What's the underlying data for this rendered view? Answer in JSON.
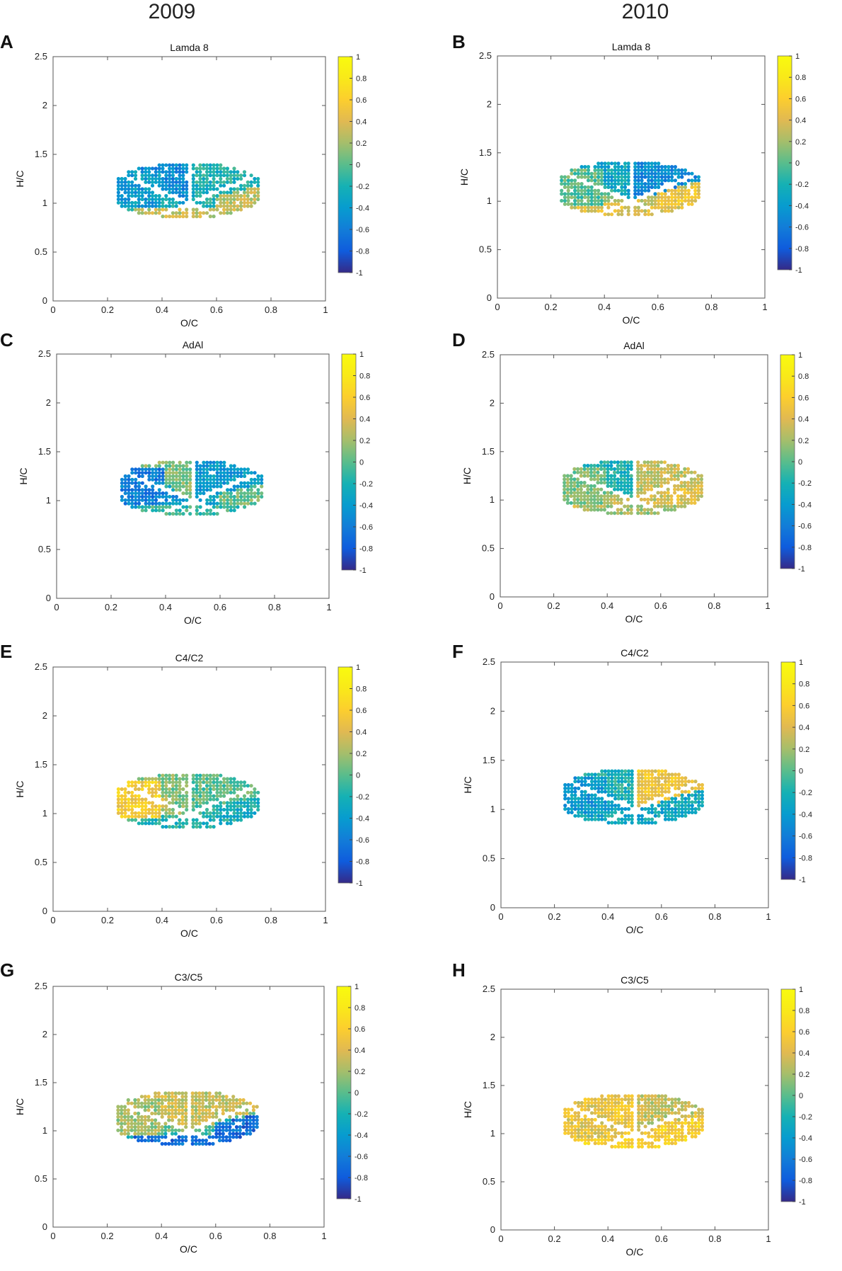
{
  "column_headers": [
    "2009",
    "2010"
  ],
  "chart_data": [
    {
      "panel": "A",
      "type": "scatter",
      "title": "Lamda 8",
      "year": "2009",
      "xlabel": "O/C",
      "ylabel": "H/C",
      "xlim": [
        0,
        1
      ],
      "ylim": [
        0,
        2.5
      ],
      "xticks": [
        "0",
        "0.2",
        "0.4",
        "0.6",
        "0.8",
        "1"
      ],
      "yticks": [
        "0",
        "0.5",
        "1",
        "1.5",
        "2",
        "2.5"
      ],
      "colorbar_ticks": [
        "-1",
        "-0.8",
        "-0.6",
        "-0.4",
        "-0.2",
        "0",
        "0.2",
        "0.4",
        "0.6",
        "0.8",
        "1"
      ],
      "color_range": [
        -1,
        1
      ],
      "color_field": {
        "base": -0.2,
        "tl": -0.5,
        "tr": -0.2,
        "r": 0.3,
        "l": -0.4,
        "b": 0.3
      }
    },
    {
      "panel": "B",
      "type": "scatter",
      "title": "Lamda 8",
      "year": "2010",
      "xlabel": "O/C",
      "ylabel": "H/C",
      "xlim": [
        0,
        1
      ],
      "ylim": [
        0,
        2.5
      ],
      "xticks": [
        "0",
        "0.2",
        "0.4",
        "0.6",
        "0.8",
        "1"
      ],
      "yticks": [
        "0",
        "0.5",
        "1",
        "1.5",
        "2",
        "2.5"
      ],
      "colorbar_ticks": [
        "-1",
        "-0.8",
        "-0.6",
        "-0.4",
        "-0.2",
        "0",
        "0.2",
        "0.4",
        "0.6",
        "0.8",
        "1"
      ],
      "color_range": [
        -1,
        1
      ],
      "color_field": {
        "base": 0.35,
        "tl": -0.3,
        "tr": -0.5,
        "r": 0.5,
        "l": 0.0,
        "b": 0.4
      }
    },
    {
      "panel": "C",
      "type": "scatter",
      "title": "AdAl",
      "year": "2009",
      "xlabel": "O/C",
      "ylabel": "H/C",
      "xlim": [
        0,
        1
      ],
      "ylim": [
        0,
        2.5
      ],
      "xticks": [
        "0",
        "0.2",
        "0.4",
        "0.6",
        "0.8",
        "1"
      ],
      "yticks": [
        "0",
        "0.5",
        "1",
        "1.5",
        "2",
        "2.5"
      ],
      "colorbar_ticks": [
        "-1",
        "-0.8",
        "-0.6",
        "-0.4",
        "-0.2",
        "0",
        "0.2",
        "0.4",
        "0.6",
        "0.8",
        "1"
      ],
      "color_range": [
        -1,
        1
      ],
      "color_field": {
        "base": -0.35,
        "tl": 0.1,
        "tr": -0.4,
        "r": 0.05,
        "l": -0.6,
        "b": -0.1
      }
    },
    {
      "panel": "D",
      "type": "scatter",
      "title": "AdAl",
      "year": "2010",
      "xlabel": "O/C",
      "ylabel": "H/C",
      "xlim": [
        0,
        1
      ],
      "ylim": [
        0,
        2.5
      ],
      "xticks": [
        "0",
        "0.2",
        "0.4",
        "0.6",
        "0.8",
        "1"
      ],
      "yticks": [
        "0",
        "0.5",
        "1",
        "1.5",
        "2",
        "2.5"
      ],
      "colorbar_ticks": [
        "-1",
        "-0.8",
        "-0.6",
        "-0.4",
        "-0.2",
        "0",
        "0.2",
        "0.4",
        "0.6",
        "0.8",
        "1"
      ],
      "color_range": [
        -1,
        1
      ],
      "color_field": {
        "base": 0.35,
        "tl": -0.2,
        "tr": 0.3,
        "r": 0.4,
        "l": 0.1,
        "b": 0.2
      }
    },
    {
      "panel": "E",
      "type": "scatter",
      "title": "C4/C2",
      "year": "2009",
      "xlabel": "O/C",
      "ylabel": "H/C",
      "xlim": [
        0,
        1
      ],
      "ylim": [
        0,
        2.5
      ],
      "xticks": [
        "0",
        "0.2",
        "0.4",
        "0.6",
        "0.8",
        "1"
      ],
      "yticks": [
        "0",
        "0.5",
        "1",
        "1.5",
        "2",
        "2.5"
      ],
      "colorbar_ticks": [
        "-1",
        "-0.8",
        "-0.6",
        "-0.4",
        "-0.2",
        "0",
        "0.2",
        "0.4",
        "0.6",
        "0.8",
        "1"
      ],
      "color_range": [
        -1,
        1
      ],
      "color_field": {
        "base": -0.1,
        "tl": 0.1,
        "tr": 0.0,
        "r": -0.25,
        "l": 0.55,
        "b": -0.2
      }
    },
    {
      "panel": "F",
      "type": "scatter",
      "title": "C4/C2",
      "year": "2010",
      "xlabel": "O/C",
      "ylabel": "H/C",
      "xlim": [
        0,
        1
      ],
      "ylim": [
        0,
        2.5
      ],
      "xticks": [
        "0",
        "0.2",
        "0.4",
        "0.6",
        "0.8",
        "1"
      ],
      "yticks": [
        "0",
        "0.5",
        "1",
        "1.5",
        "2",
        "2.5"
      ],
      "colorbar_ticks": [
        "-1",
        "-0.8",
        "-0.6",
        "-0.4",
        "-0.2",
        "0",
        "0.2",
        "0.4",
        "0.6",
        "0.8",
        "1"
      ],
      "color_range": [
        -1,
        1
      ],
      "color_field": {
        "base": -0.3,
        "tl": -0.2,
        "tr": 0.5,
        "r": -0.3,
        "l": -0.4,
        "b": -0.3
      }
    },
    {
      "panel": "G",
      "type": "scatter",
      "title": "C3/C5",
      "year": "2009",
      "xlabel": "O/C",
      "ylabel": "H/C",
      "xlim": [
        0,
        1
      ],
      "ylim": [
        0,
        2.5
      ],
      "xticks": [
        "0",
        "0.2",
        "0.4",
        "0.6",
        "0.8",
        "1"
      ],
      "yticks": [
        "0",
        "0.5",
        "1",
        "1.5",
        "2",
        "2.5"
      ],
      "colorbar_ticks": [
        "-1",
        "-0.8",
        "-0.6",
        "-0.4",
        "-0.2",
        "0",
        "0.2",
        "0.4",
        "0.6",
        "0.8",
        "1"
      ],
      "color_range": [
        -1,
        1
      ],
      "color_field": {
        "base": -0.1,
        "tl": 0.35,
        "tr": 0.3,
        "r": -0.7,
        "l": 0.2,
        "b": -0.7
      }
    },
    {
      "panel": "H",
      "type": "scatter",
      "title": "C3/C5",
      "year": "2010",
      "xlabel": "O/C",
      "ylabel": "H/C",
      "xlim": [
        0,
        1
      ],
      "ylim": [
        0,
        2.5
      ],
      "xticks": [
        "0",
        "0.2",
        "0.4",
        "0.6",
        "0.8",
        "1"
      ],
      "yticks": [
        "0",
        "0.5",
        "1",
        "1.5",
        "2",
        "2.5"
      ],
      "colorbar_ticks": [
        "-1",
        "-0.8",
        "-0.6",
        "-0.4",
        "-0.2",
        "0",
        "0.2",
        "0.4",
        "0.6",
        "0.8",
        "1"
      ],
      "color_range": [
        -1,
        1
      ],
      "color_field": {
        "base": 0.55,
        "tl": 0.5,
        "tr": 0.3,
        "r": 0.6,
        "l": 0.45,
        "b": 0.6
      }
    }
  ]
}
